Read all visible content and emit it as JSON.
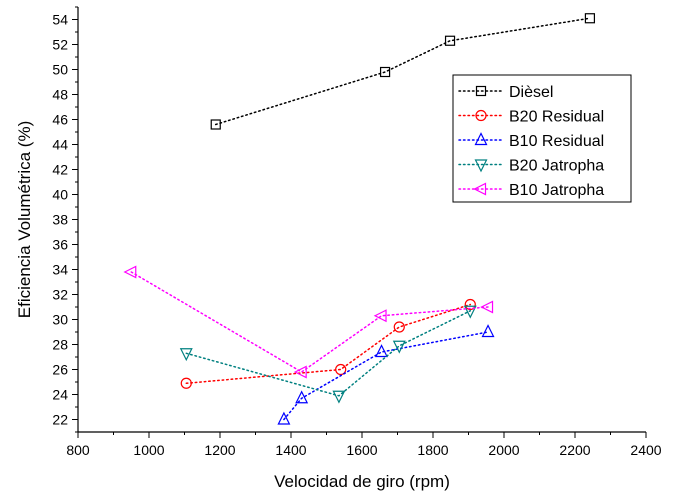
{
  "chart_data": {
    "type": "line",
    "xlabel": "Velocidad de giro (rpm)",
    "ylabel": "Eficiencia Volumétrica (%)",
    "xlim": [
      800,
      2400
    ],
    "ylim": [
      21,
      55
    ],
    "x_ticks": [
      "800",
      "1000",
      "1200",
      "1400",
      "1600",
      "1800",
      "2000",
      "2200",
      "2400"
    ],
    "y_ticks": [
      "22",
      "24",
      "26",
      "28",
      "30",
      "32",
      "34",
      "36",
      "38",
      "40",
      "42",
      "44",
      "46",
      "48",
      "50",
      "52",
      "54"
    ],
    "grid": false,
    "legend_position": "upper-right",
    "line_style": "dotted",
    "series": [
      {
        "name": "Dièsel",
        "color": "#000000",
        "marker": "square",
        "points": [
          [
            1188,
            45.6
          ],
          [
            1665,
            49.8
          ],
          [
            1848,
            52.3
          ],
          [
            2242,
            54.1
          ]
        ]
      },
      {
        "name": "B20 Residual",
        "color": "#ff0000",
        "marker": "circle",
        "points": [
          [
            1105,
            24.9
          ],
          [
            1540,
            26.0
          ],
          [
            1705,
            29.4
          ],
          [
            1905,
            31.2
          ]
        ]
      },
      {
        "name": "B10 Residual",
        "color": "#0000ff",
        "marker": "triangle-up",
        "points": [
          [
            1380,
            22.0
          ],
          [
            1430,
            23.7
          ],
          [
            1655,
            27.4
          ],
          [
            1955,
            29.0
          ]
        ]
      },
      {
        "name": "B20 Jatropha",
        "color": "#008080",
        "marker": "triangle-down",
        "points": [
          [
            1105,
            27.3
          ],
          [
            1535,
            23.9
          ],
          [
            1705,
            27.9
          ],
          [
            1905,
            30.7
          ]
        ]
      },
      {
        "name": "B10 Jatropha",
        "color": "#ff00ff",
        "marker": "triangle-left",
        "points": [
          [
            950,
            33.8
          ],
          [
            1430,
            25.8
          ],
          [
            1655,
            30.3
          ],
          [
            1955,
            31.0
          ]
        ]
      }
    ]
  }
}
